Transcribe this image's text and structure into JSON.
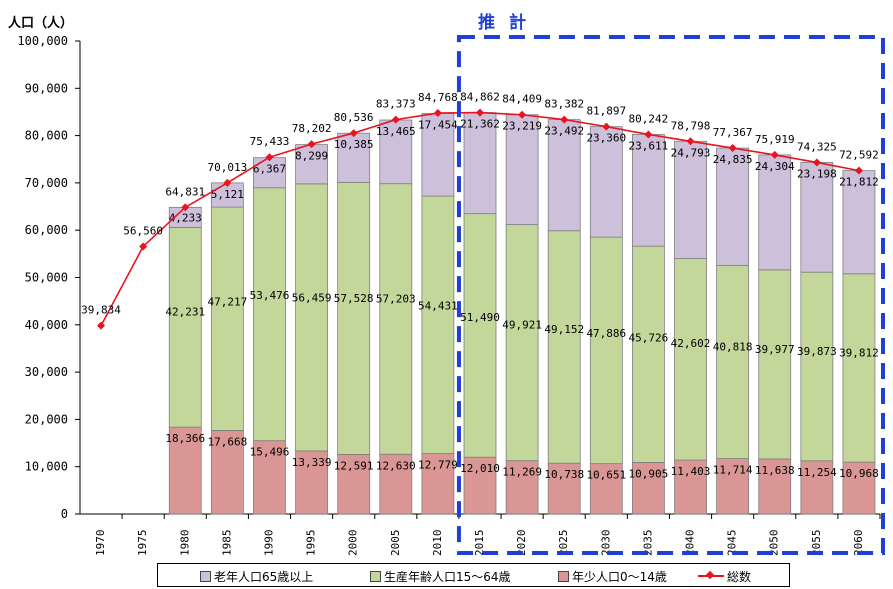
{
  "ylabel_text": "人口（人）",
  "projection_label": "推計",
  "colors": {
    "elderly": "#ccc0da",
    "working": "#c4d79b",
    "youth": "#da9694",
    "total": "#e8141f",
    "projection_box": "#1f3fd6",
    "axis": "#000000",
    "grid": "#d9d9d9"
  },
  "chart_data": {
    "type": "bar",
    "stacked": true,
    "title": "",
    "xlabel": "",
    "ylabel": "人口（人）",
    "ylim": [
      0,
      100000
    ],
    "yticks": [
      "0",
      "10,000",
      "20,000",
      "30,000",
      "40,000",
      "50,000",
      "60,000",
      "70,000",
      "80,000",
      "90,000",
      "100,000"
    ],
    "categories": [
      "1970",
      "1975",
      "1980",
      "1985",
      "1990",
      "1995",
      "2000",
      "2005",
      "2010",
      "2015",
      "2020",
      "2025",
      "2030",
      "2035",
      "2040",
      "2045",
      "2050",
      "2055",
      "2060"
    ],
    "series": [
      {
        "name": "年少人口0～14歳",
        "key": "youth",
        "values": [
          null,
          null,
          18366,
          17668,
          15496,
          13339,
          12591,
          12630,
          12779,
          12010,
          11269,
          10738,
          10651,
          10905,
          11403,
          11714,
          11638,
          11254,
          10968
        ],
        "labels": [
          "",
          "",
          "18,366",
          "17,668",
          "15,496",
          "13,339",
          "12,591",
          "12,630",
          "12,779",
          "12,010",
          "11,269",
          "10,738",
          "10,651",
          "10,905",
          "11,403",
          "11,714",
          "11,638",
          "11,254",
          "10,968"
        ]
      },
      {
        "name": "生産年齢人口15～64歳",
        "key": "working",
        "values": [
          null,
          null,
          42231,
          47217,
          53476,
          56459,
          57528,
          57203,
          54431,
          51490,
          49921,
          49152,
          47886,
          45726,
          42602,
          40818,
          39977,
          39873,
          39812
        ],
        "labels": [
          "",
          "",
          "42,231",
          "47,217",
          "53,476",
          "56,459",
          "57,528",
          "57,203",
          "54,431",
          "51,490",
          "49,921",
          "49,152",
          "47,886",
          "45,726",
          "42,602",
          "40,818",
          "39,977",
          "39,873",
          "39,812"
        ]
      },
      {
        "name": "老年人口65歳以上",
        "key": "elderly",
        "values": [
          null,
          null,
          4233,
          5121,
          6367,
          8299,
          10385,
          13465,
          17454,
          21362,
          23219,
          23492,
          23360,
          23611,
          24793,
          24835,
          24304,
          23198,
          21812
        ],
        "labels": [
          "",
          "",
          "4,233",
          "5,121",
          "6,367",
          "8,299",
          "10,385",
          "13,465",
          "17,454",
          "21,362",
          "23,219",
          "23,492",
          "23,360",
          "23,611",
          "24,793",
          "24,835",
          "24,304",
          "23,198",
          "21,812"
        ]
      }
    ],
    "line_series": {
      "name": "総数",
      "type": "line",
      "values": [
        39834,
        56560,
        64831,
        70013,
        75433,
        78202,
        80536,
        83373,
        84768,
        84862,
        84409,
        83382,
        81897,
        80242,
        78798,
        77367,
        75919,
        74325,
        72592
      ],
      "labels": [
        "39,834",
        "56,560",
        "64,831",
        "70,013",
        "75,433",
        "78,202",
        "80,536",
        "83,373",
        "84,768",
        "84,862",
        "84,409",
        "83,382",
        "81,897",
        "80,242",
        "78,798",
        "77,367",
        "75,919",
        "74,325",
        "72,592"
      ]
    },
    "legend": {
      "position": "bottom",
      "order": [
        "elderly",
        "working",
        "youth",
        "total"
      ]
    },
    "projection_start": "2015",
    "grid": false
  }
}
